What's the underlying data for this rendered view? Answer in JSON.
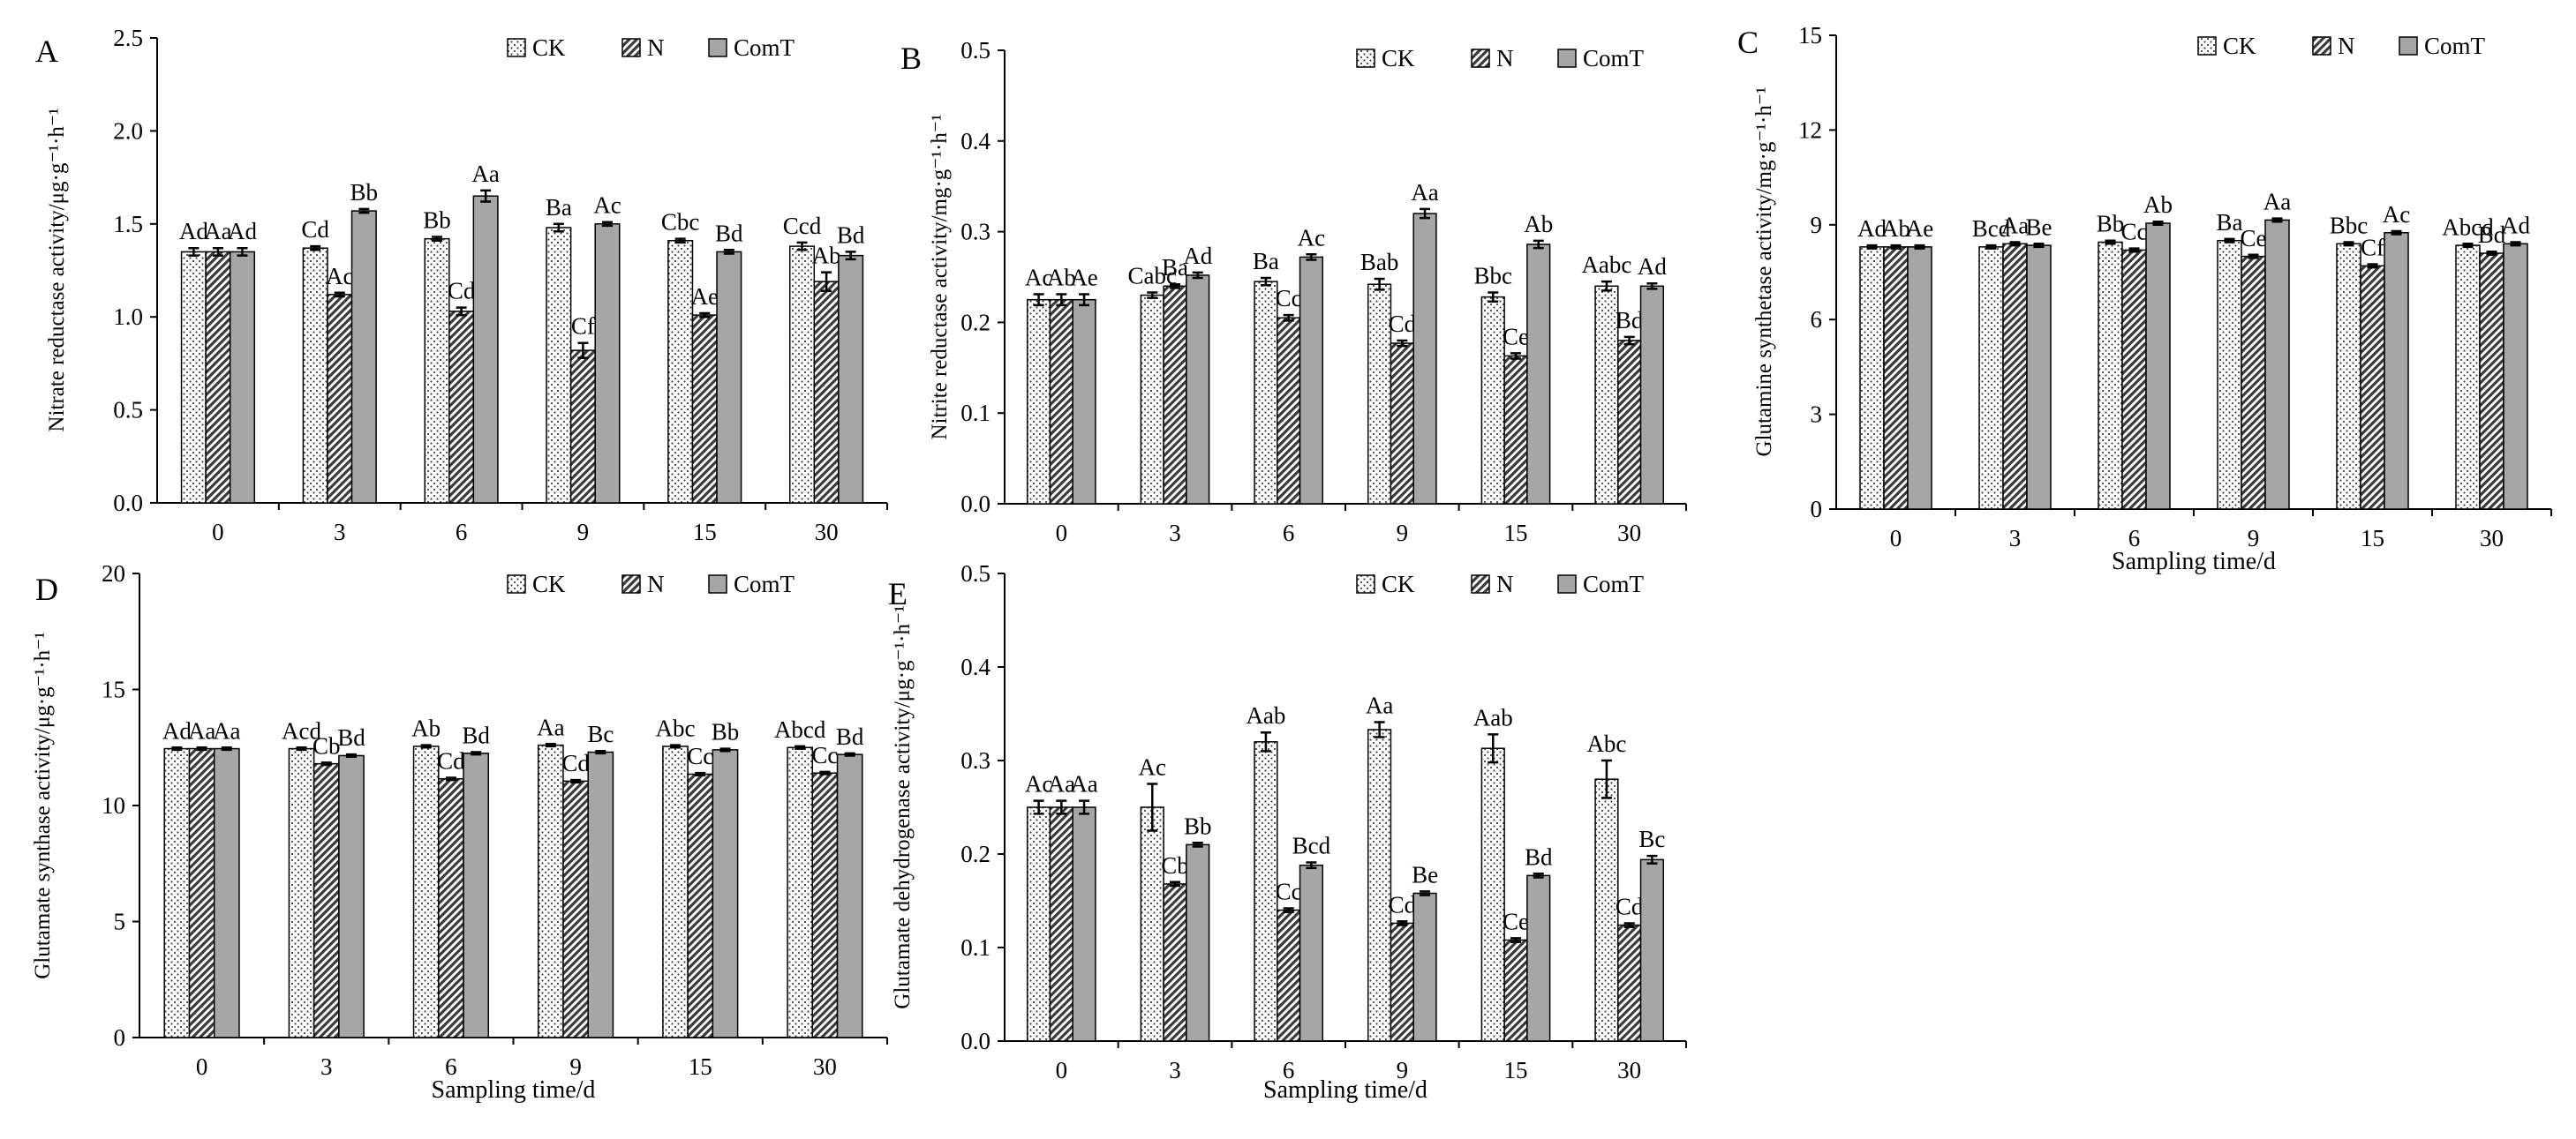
{
  "series_names": [
    "CK",
    "N",
    "ComT"
  ],
  "series_colors": {
    "CK": "#ffffff",
    "N": "#ffffff",
    "ComT": "#a6a6a6"
  },
  "chart_data": [
    {
      "panel": "A",
      "type": "bar",
      "ylabel": "Nitrate reductase activity/μg·g⁻¹·h⁻¹",
      "xlabel": "",
      "categories": [
        "0",
        "3",
        "6",
        "9",
        "15",
        "30"
      ],
      "ylim": [
        0,
        2.5
      ],
      "yticks": [
        "0.0",
        "0.5",
        "1.0",
        "1.5",
        "2.0",
        "2.5"
      ],
      "series": [
        {
          "name": "CK",
          "values": [
            1.35,
            1.37,
            1.42,
            1.48,
            1.41,
            1.38
          ],
          "errors": [
            0.02,
            0.01,
            0.01,
            0.02,
            0.01,
            0.02
          ],
          "labels": [
            "Ad",
            "Cd",
            "Bb",
            "Ba",
            "Cbc",
            "Ccd"
          ]
        },
        {
          "name": "N",
          "values": [
            1.35,
            1.12,
            1.03,
            0.82,
            1.01,
            1.19
          ],
          "errors": [
            0.02,
            0.01,
            0.02,
            0.04,
            0.01,
            0.05
          ],
          "labels": [
            "Aa",
            "Ac",
            "Cd",
            "Cf",
            "Ae",
            "Ab"
          ]
        },
        {
          "name": "ComT",
          "values": [
            1.35,
            1.57,
            1.65,
            1.5,
            1.35,
            1.33
          ],
          "errors": [
            0.02,
            0.01,
            0.03,
            0.01,
            0.01,
            0.02
          ],
          "labels": [
            "Ad",
            "Bb",
            "Aa",
            "Ac",
            "Bd",
            "Bd"
          ]
        }
      ]
    },
    {
      "panel": "B",
      "type": "bar",
      "ylabel": "Nitrite reductase activity/mg·g⁻¹·h⁻¹",
      "xlabel": "",
      "categories": [
        "0",
        "3",
        "6",
        "9",
        "15",
        "30"
      ],
      "ylim": [
        0,
        0.5
      ],
      "yticks": [
        "0.0",
        "0.1",
        "0.2",
        "0.3",
        "0.4",
        "0.5"
      ],
      "series": [
        {
          "name": "CK",
          "values": [
            0.225,
            0.23,
            0.245,
            0.242,
            0.228,
            0.24
          ],
          "errors": [
            0.006,
            0.003,
            0.004,
            0.006,
            0.005,
            0.005
          ],
          "labels": [
            "Ac",
            "Cabc",
            "Ba",
            "Bab",
            "Bbc",
            "Aabc"
          ]
        },
        {
          "name": "N",
          "values": [
            0.225,
            0.24,
            0.205,
            0.177,
            0.163,
            0.18
          ],
          "errors": [
            0.006,
            0.002,
            0.003,
            0.003,
            0.003,
            0.004
          ],
          "labels": [
            "Ab",
            "Ba",
            "Cc",
            "Cd",
            "Ce",
            "Bd"
          ]
        },
        {
          "name": "ComT",
          "values": [
            0.225,
            0.252,
            0.272,
            0.32,
            0.286,
            0.24
          ],
          "errors": [
            0.006,
            0.003,
            0.003,
            0.005,
            0.004,
            0.003
          ],
          "labels": [
            "Ae",
            "Ad",
            "Ac",
            "Aa",
            "Ab",
            "Ad"
          ]
        }
      ]
    },
    {
      "panel": "C",
      "type": "bar",
      "ylabel": "Glutamine synthetase activity/mg·g⁻¹·h⁻¹",
      "xlabel": "Sampling time/d",
      "categories": [
        "0",
        "3",
        "6",
        "9",
        "15",
        "30"
      ],
      "ylim": [
        0,
        15
      ],
      "yticks": [
        "0",
        "3",
        "6",
        "9",
        "12",
        "15"
      ],
      "series": [
        {
          "name": "CK",
          "values": [
            8.3,
            8.3,
            8.45,
            8.5,
            8.4,
            8.35
          ],
          "errors": [
            0.05,
            0.05,
            0.05,
            0.05,
            0.05,
            0.05
          ],
          "labels": [
            "Ad",
            "Bcd",
            "Bb",
            "Ba",
            "Bbc",
            "Abcd"
          ]
        },
        {
          "name": "N",
          "values": [
            8.3,
            8.4,
            8.2,
            8.0,
            7.7,
            8.1
          ],
          "errors": [
            0.05,
            0.05,
            0.05,
            0.05,
            0.05,
            0.05
          ],
          "labels": [
            "Ab",
            "Aa",
            "Cc",
            "Ce",
            "Cf",
            "Bd"
          ]
        },
        {
          "name": "ComT",
          "values": [
            8.3,
            8.35,
            9.05,
            9.15,
            8.75,
            8.4
          ],
          "errors": [
            0.05,
            0.05,
            0.05,
            0.05,
            0.05,
            0.05
          ],
          "labels": [
            "Ae",
            "Be",
            "Ab",
            "Aa",
            "Ac",
            "Ad"
          ]
        }
      ]
    },
    {
      "panel": "D",
      "type": "bar",
      "ylabel": "Glutamate synthase activity/μg·g⁻¹·h⁻¹",
      "xlabel": "Sampling time/d",
      "categories": [
        "0",
        "3",
        "6",
        "9",
        "15",
        "30"
      ],
      "ylim": [
        0,
        20
      ],
      "yticks": [
        "0",
        "5",
        "10",
        "15",
        "20"
      ],
      "series": [
        {
          "name": "CK",
          "values": [
            12.45,
            12.45,
            12.55,
            12.6,
            12.55,
            12.5
          ],
          "errors": [
            0.05,
            0.05,
            0.05,
            0.05,
            0.05,
            0.05
          ],
          "labels": [
            "Ad",
            "Acd",
            "Ab",
            "Aa",
            "Abc",
            "Abcd"
          ]
        },
        {
          "name": "N",
          "values": [
            12.45,
            11.8,
            11.15,
            11.05,
            11.35,
            11.4
          ],
          "errors": [
            0.05,
            0.05,
            0.05,
            0.05,
            0.05,
            0.05
          ],
          "labels": [
            "Aa",
            "Cb",
            "Cd",
            "Cd",
            "Cc",
            "Cc"
          ]
        },
        {
          "name": "ComT",
          "values": [
            12.45,
            12.15,
            12.25,
            12.3,
            12.4,
            12.2
          ],
          "errors": [
            0.05,
            0.05,
            0.05,
            0.05,
            0.05,
            0.05
          ],
          "labels": [
            "Aa",
            "Bd",
            "Bd",
            "Bc",
            "Bb",
            "Bd"
          ]
        }
      ]
    },
    {
      "panel": "E",
      "type": "bar",
      "ylabel": "Glutamate dehydrogenase activity/μg·g⁻¹·h⁻¹",
      "xlabel": "Sampling time/d",
      "categories": [
        "0",
        "3",
        "6",
        "9",
        "15",
        "30"
      ],
      "ylim": [
        0,
        0.5
      ],
      "yticks": [
        "0.0",
        "0.1",
        "0.2",
        "0.3",
        "0.4",
        "0.5"
      ],
      "series": [
        {
          "name": "CK",
          "values": [
            0.25,
            0.25,
            0.32,
            0.333,
            0.313,
            0.28
          ],
          "errors": [
            0.007,
            0.025,
            0.01,
            0.008,
            0.015,
            0.02
          ],
          "labels": [
            "Ac",
            "Ac",
            "Aab",
            "Aa",
            "Aab",
            "Abc"
          ]
        },
        {
          "name": "N",
          "values": [
            0.25,
            0.168,
            0.14,
            0.126,
            0.108,
            0.124
          ],
          "errors": [
            0.007,
            0.002,
            0.002,
            0.002,
            0.002,
            0.002
          ],
          "labels": [
            "Aa",
            "Cb",
            "Cc",
            "Cd",
            "Ce",
            "Cd"
          ]
        },
        {
          "name": "ComT",
          "values": [
            0.25,
            0.21,
            0.188,
            0.158,
            0.177,
            0.194
          ],
          "errors": [
            0.007,
            0.002,
            0.003,
            0.002,
            0.002,
            0.004
          ],
          "labels": [
            "Aa",
            "Bb",
            "Bcd",
            "Be",
            "Bd",
            "Bc"
          ]
        }
      ]
    }
  ]
}
